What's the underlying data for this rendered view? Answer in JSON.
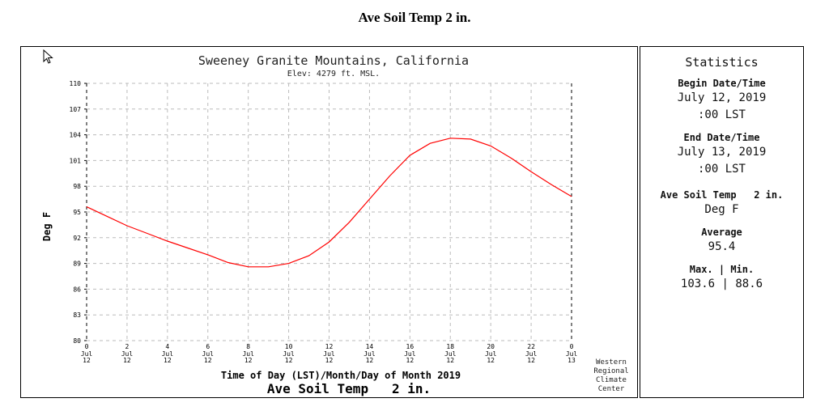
{
  "page_title": "Ave Soil Temp 2 in.",
  "chart_data": {
    "type": "line",
    "title": "Sweeney Granite Mountains, California",
    "subtitle": "Elev: 4279 ft. MSL.",
    "xlabel": "Time of Day (LST)/Month/Day of Month 2019",
    "ylabel": "Deg F",
    "bottom_title": "Ave Soil Temp   2 in.",
    "credit": [
      "Western",
      "Regional",
      "Climate",
      "Center"
    ],
    "ylim": [
      80,
      110
    ],
    "yticks": [
      80,
      83,
      86,
      89,
      92,
      95,
      98,
      101,
      104,
      107,
      110
    ],
    "xlim": [
      0,
      24
    ],
    "xticks": [
      {
        "x": 0,
        "hour": "0",
        "month": "Jul",
        "day": "12"
      },
      {
        "x": 2,
        "hour": "2",
        "month": "Jul",
        "day": "12"
      },
      {
        "x": 4,
        "hour": "4",
        "month": "Jul",
        "day": "12"
      },
      {
        "x": 6,
        "hour": "6",
        "month": "Jul",
        "day": "12"
      },
      {
        "x": 8,
        "hour": "8",
        "month": "Jul",
        "day": "12"
      },
      {
        "x": 10,
        "hour": "10",
        "month": "Jul",
        "day": "12"
      },
      {
        "x": 12,
        "hour": "12",
        "month": "Jul",
        "day": "12"
      },
      {
        "x": 14,
        "hour": "14",
        "month": "Jul",
        "day": "12"
      },
      {
        "x": 16,
        "hour": "16",
        "month": "Jul",
        "day": "12"
      },
      {
        "x": 18,
        "hour": "18",
        "month": "Jul",
        "day": "12"
      },
      {
        "x": 20,
        "hour": "20",
        "month": "Jul",
        "day": "12"
      },
      {
        "x": 22,
        "hour": "22",
        "month": "Jul",
        "day": "12"
      },
      {
        "x": 24,
        "hour": "0",
        "month": "Jul",
        "day": "13"
      }
    ],
    "grid": true,
    "series": [
      {
        "color": "#ff0000",
        "x": [
          0,
          1,
          2,
          3,
          4,
          5,
          6,
          7,
          8,
          9,
          10,
          11,
          12,
          13,
          14,
          15,
          16,
          17,
          18,
          19,
          20,
          21,
          22,
          23,
          24
        ],
        "y": [
          95.6,
          94.5,
          93.4,
          92.5,
          91.6,
          90.8,
          90.0,
          89.1,
          88.6,
          88.6,
          89.0,
          89.9,
          91.5,
          93.8,
          96.5,
          99.2,
          101.6,
          103.0,
          103.6,
          103.5,
          102.7,
          101.3,
          99.7,
          98.2,
          96.8
        ]
      }
    ]
  },
  "stats": {
    "heading": "Statistics",
    "begin_label": "Begin Date/Time",
    "begin_date": "July 12, 2019",
    "begin_time": ":00 LST",
    "end_label": "End Date/Time",
    "end_date": "July 13, 2019",
    "end_time": ":00 LST",
    "variable": "Ave Soil Temp   2 in.",
    "units": "Deg F",
    "avg_label": "Average",
    "avg_value": "95.4",
    "maxmin_label": "Max. | Min.",
    "maxmin_value": "103.6 | 88.6"
  },
  "icons": {
    "cursor": "mouse-pointer-icon"
  }
}
